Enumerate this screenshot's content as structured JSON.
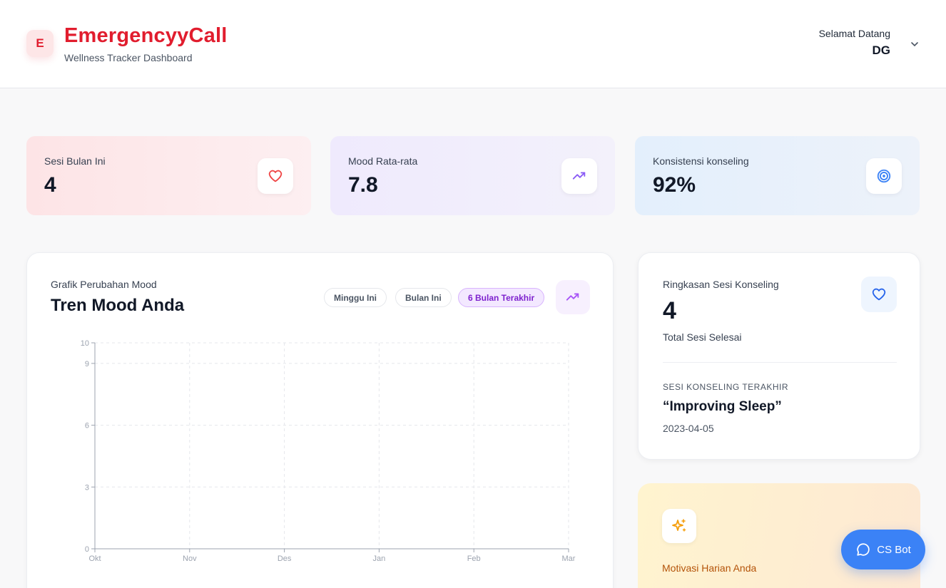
{
  "header": {
    "logo_letter": "E",
    "brand": "EmergencyyCall",
    "subtitle": "Wellness Tracker Dashboard",
    "welcome_label": "Selamat Datang",
    "user_initials": "DG"
  },
  "stats": [
    {
      "label": "Sesi Bulan Ini",
      "value": "4",
      "icon": "heart-icon",
      "color": "#ef4444"
    },
    {
      "label": "Mood Rata-rata",
      "value": "7.8",
      "icon": "trending-up-icon",
      "color": "#8b5cf6"
    },
    {
      "label": "Konsistensi konseling",
      "value": "92%",
      "icon": "target-icon",
      "color": "#3b82f6"
    }
  ],
  "mood_chart": {
    "kicker": "Grafik Perubahan Mood",
    "title": "Tren Mood Anda",
    "filters": [
      "Minggu Ini",
      "Bulan Ini",
      "6 Bulan Terakhir"
    ],
    "active_filter": "6 Bulan Terakhir",
    "accent": "#a855f7"
  },
  "chart_data": {
    "type": "line",
    "categories": [
      "Okt",
      "Nov",
      "Des",
      "Jan",
      "Feb",
      "Mar"
    ],
    "series": [],
    "yticks": [
      0,
      3,
      6,
      9,
      10
    ],
    "ylim": [
      0,
      10
    ],
    "grid": true
  },
  "summary": {
    "label": "Ringkasan Sesi Konseling",
    "value": "4",
    "sub": "Total Sesi Selesai",
    "last_label": "SESI KONSELING TERAKHIR",
    "last_title": "“Improving Sleep”",
    "last_date": "2023-04-05"
  },
  "motivation": {
    "label": "Motivasi Harian Anda"
  },
  "csbot": {
    "label": "CS Bot"
  }
}
